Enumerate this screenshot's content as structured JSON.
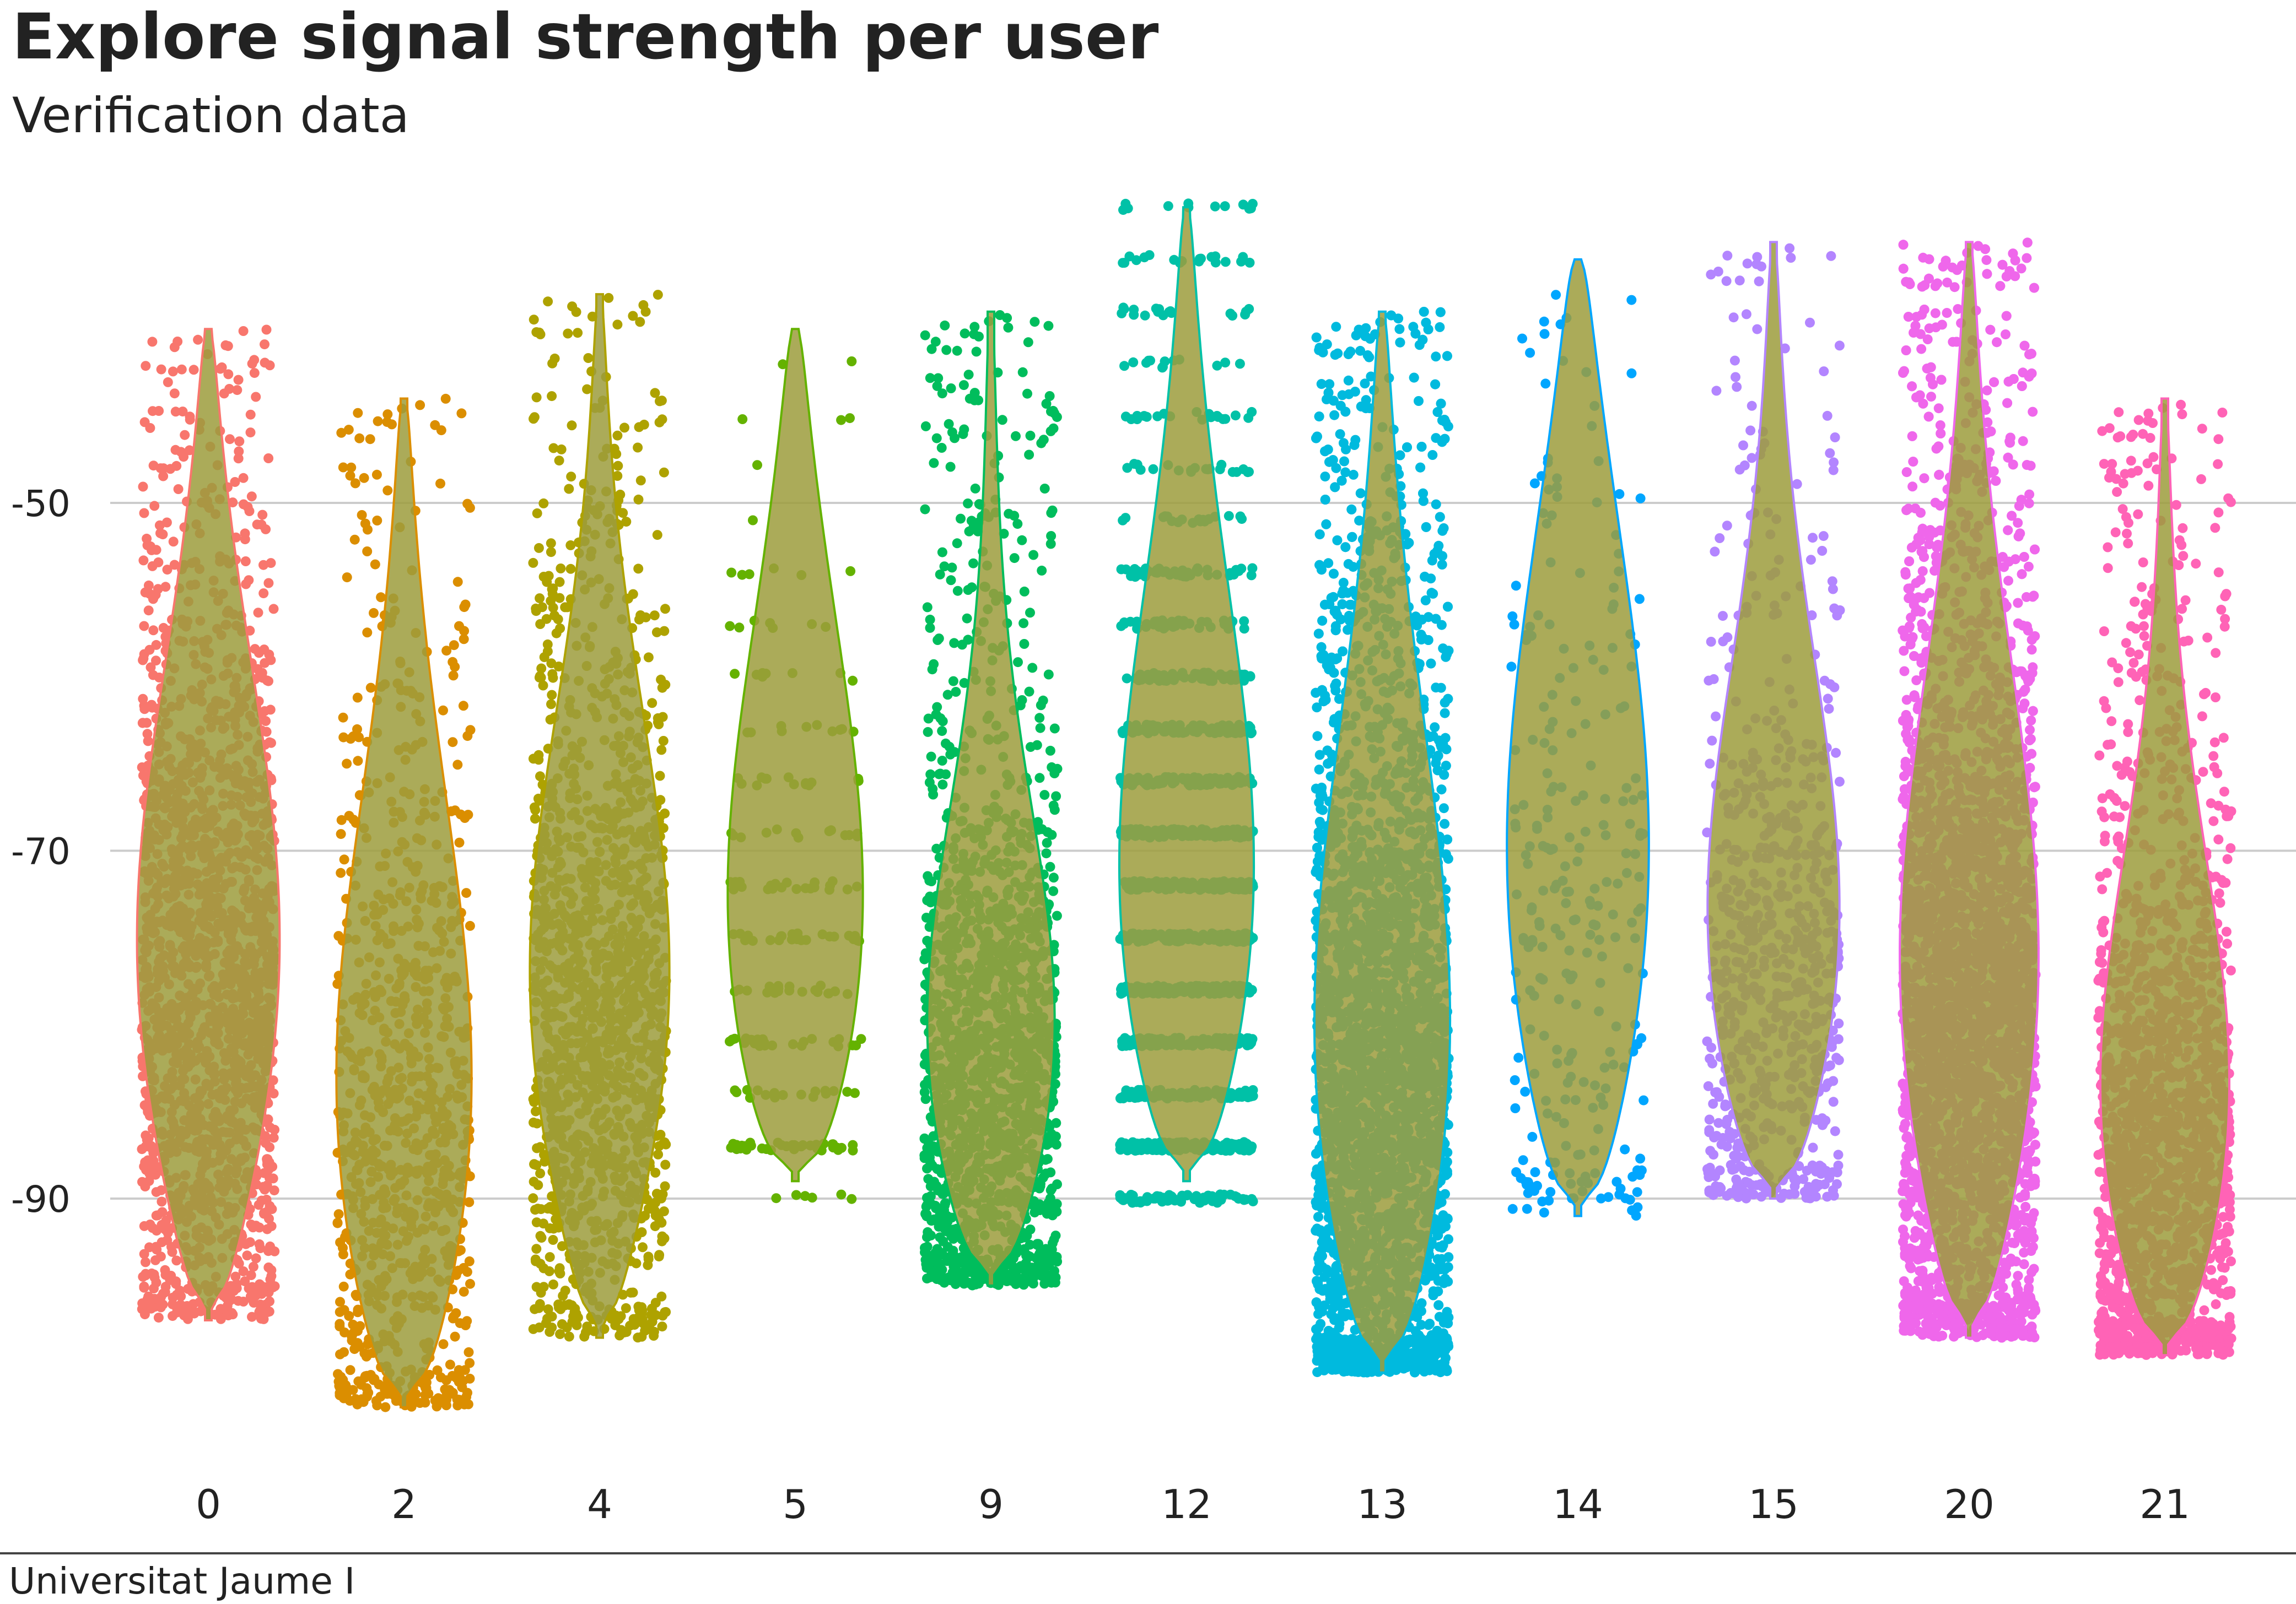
{
  "title": "Explore signal strength per user",
  "subtitle": "Verification data",
  "caption": "Universitat Jaume I",
  "chart_data": {
    "type": "violin",
    "xlabel": "",
    "ylabel": "",
    "categories": [
      "0",
      "2",
      "4",
      "5",
      "9",
      "12",
      "13",
      "14",
      "15",
      "20",
      "21"
    ],
    "yticks": [
      "-50",
      "-70",
      "-90"
    ],
    "ylim": [
      -105,
      -32
    ],
    "grid": "horizontal major",
    "legend": "none",
    "violin_fill": "#9c9c3c",
    "colors": [
      "#F8766D",
      "#DB8E00",
      "#AEA200",
      "#64B200",
      "#00BD5C",
      "#00C1A7",
      "#00BADE",
      "#00A6FF",
      "#B385FF",
      "#EF67EB",
      "#FF63B6"
    ],
    "series": [
      {
        "user": "0",
        "min": -97,
        "max": -40,
        "median": -78,
        "q1": -85,
        "q3": -70,
        "points": 1800,
        "pattern": "uniform"
      },
      {
        "user": "2",
        "min": -102,
        "max": -44,
        "median": -88,
        "q1": -94,
        "q3": -78,
        "points": 900,
        "pattern": "uniform"
      },
      {
        "user": "4",
        "min": -98,
        "max": -38,
        "median": -80,
        "q1": -86,
        "q3": -72,
        "points": 1400,
        "pattern": "uniform"
      },
      {
        "user": "5",
        "min": -89,
        "max": -40,
        "median": -78,
        "q1": -83,
        "q3": -67,
        "points": 220,
        "pattern": "discrete"
      },
      {
        "user": "9",
        "min": -95,
        "max": -39,
        "median": -84,
        "q1": -89,
        "q3": -77,
        "points": 1600,
        "pattern": "uniform"
      },
      {
        "user": "12",
        "min": -89,
        "max": -33,
        "median": -76,
        "q1": -83,
        "q3": -67,
        "points": 1500,
        "pattern": "banded"
      },
      {
        "user": "13",
        "min": -100,
        "max": -39,
        "median": -85,
        "q1": -91,
        "q3": -74,
        "points": 6000,
        "pattern": "uniform"
      },
      {
        "user": "14",
        "min": -91,
        "max": -36,
        "median": -74,
        "q1": -82,
        "q3": -64,
        "points": 260,
        "pattern": "uniform"
      },
      {
        "user": "15",
        "min": -90,
        "max": -35,
        "median": -78,
        "q1": -84,
        "q3": -70,
        "points": 700,
        "pattern": "uniform"
      },
      {
        "user": "20",
        "min": -98,
        "max": -35,
        "median": -80,
        "q1": -87,
        "q3": -71,
        "points": 7000,
        "pattern": "uniform"
      },
      {
        "user": "21",
        "min": -99,
        "max": -44,
        "median": -88,
        "q1": -93,
        "q3": -80,
        "points": 1600,
        "pattern": "uniform"
      }
    ]
  }
}
